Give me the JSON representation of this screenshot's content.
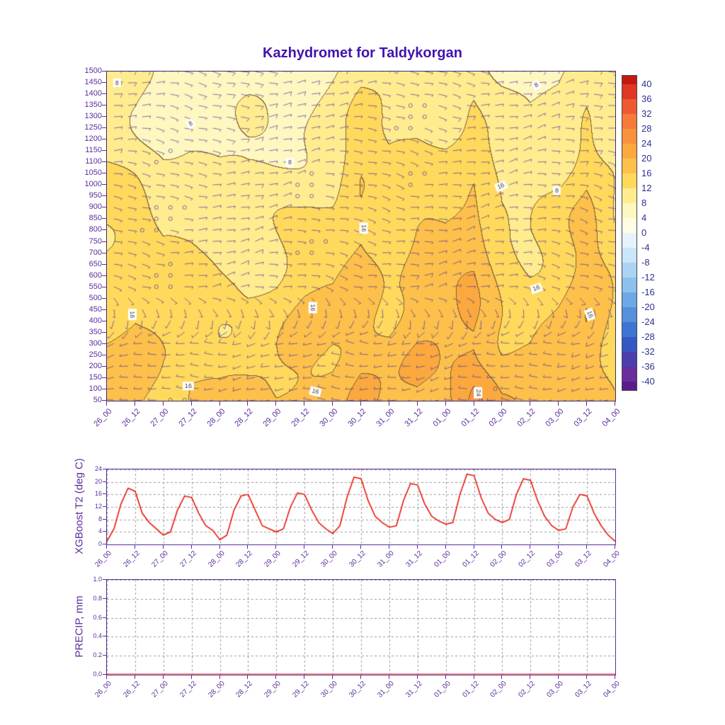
{
  "title": "Kazhydromet for Taldykorgan",
  "colors": {
    "title": "#4312b0",
    "axis": "#5b2d9b",
    "tick_label": "#5b2d9b",
    "temp_line": "#e8180c",
    "colorbar_label": "#2a3190",
    "barb": "#53399a",
    "contour_line": "#80643a",
    "grid_line": "#999999",
    "background": "#ffffff"
  },
  "x_labels": [
    "26_00",
    "26_12",
    "27_00",
    "27_12",
    "28_00",
    "28_12",
    "29_00",
    "29_12",
    "30_00",
    "30_12",
    "31_00",
    "31_12",
    "01_00",
    "01_12",
    "02_00",
    "02_12",
    "03_00",
    "03_12",
    "04_00"
  ],
  "chart_data": [
    {
      "type": "heatmap",
      "title": "Kazhydromet for Taldykorgan",
      "x": [
        "26_00",
        "26_12",
        "27_00",
        "27_12",
        "28_00",
        "28_12",
        "29_00",
        "29_12",
        "30_00",
        "30_12",
        "31_00",
        "31_12",
        "01_00",
        "01_12",
        "02_00",
        "02_12",
        "03_00",
        "03_12",
        "04_00"
      ],
      "y_ticks": [
        50,
        100,
        150,
        200,
        250,
        300,
        350,
        400,
        450,
        500,
        550,
        600,
        650,
        700,
        750,
        800,
        850,
        900,
        950,
        1000,
        1050,
        1100,
        1150,
        1200,
        1250,
        1300,
        1350,
        1400,
        1450,
        1500
      ],
      "y_axis_units": "height_m",
      "grid_levels": [
        1500,
        1300,
        1050,
        800,
        550,
        300,
        50
      ],
      "temperature": [
        [
          8,
          7,
          6,
          6,
          5,
          6,
          6,
          7,
          9,
          11,
          9,
          10,
          10,
          11,
          8,
          6,
          7,
          10,
          9
        ],
        [
          9,
          8,
          7,
          7,
          6,
          7,
          7,
          8,
          10,
          13,
          11,
          12,
          12,
          13,
          9,
          7,
          9,
          13,
          10
        ],
        [
          12,
          11,
          9,
          9,
          8,
          8,
          9,
          10,
          11,
          15,
          12,
          14,
          14,
          16,
          11,
          9,
          11,
          16,
          12
        ],
        [
          13,
          14,
          11,
          11,
          10,
          10,
          11,
          12,
          13,
          17,
          14,
          16,
          16,
          18,
          13,
          12,
          13,
          17,
          13
        ],
        [
          15,
          16,
          13,
          13,
          12,
          12,
          13,
          15,
          15,
          18,
          16,
          18,
          18,
          19,
          15,
          14,
          15,
          18,
          14
        ],
        [
          17,
          17,
          15,
          15,
          14,
          14,
          15,
          17,
          17,
          19,
          17,
          19,
          19,
          21,
          17,
          16,
          17,
          19,
          15
        ],
        [
          18,
          17,
          16,
          17,
          16,
          16,
          16,
          18,
          18,
          20,
          18,
          20,
          20,
          25,
          19,
          18,
          17,
          19,
          16
        ]
      ],
      "wind_dir_deg": [
        [
          70,
          80,
          90,
          100,
          110,
          100,
          90,
          80,
          70,
          80,
          90,
          100,
          110,
          100,
          90,
          80,
          70,
          80,
          90
        ],
        [
          80,
          90,
          100,
          110,
          100,
          90,
          80,
          70,
          80,
          90,
          100,
          110,
          100,
          90,
          80,
          70,
          80,
          90,
          100
        ],
        [
          90,
          100,
          110,
          100,
          90,
          80,
          70,
          80,
          90,
          100,
          110,
          100,
          90,
          80,
          70,
          80,
          90,
          100,
          110
        ],
        [
          100,
          110,
          100,
          90,
          80,
          70,
          80,
          90,
          100,
          110,
          100,
          90,
          80,
          70,
          80,
          90,
          100,
          110,
          100
        ],
        [
          110,
          100,
          90,
          80,
          70,
          80,
          90,
          100,
          110,
          100,
          90,
          80,
          70,
          80,
          90,
          100,
          110,
          100,
          90
        ],
        [
          250,
          260,
          270,
          280,
          270,
          260,
          250,
          260,
          270,
          280,
          270,
          260,
          250,
          260,
          270,
          280,
          270,
          260,
          250
        ],
        [
          260,
          270,
          280,
          270,
          260,
          250,
          260,
          270,
          280,
          270,
          260,
          250,
          260,
          270,
          280,
          270,
          260,
          250,
          260
        ]
      ],
      "wind_speed_kt": [
        [
          8,
          7,
          6,
          7,
          8,
          9,
          8,
          7,
          6,
          7,
          4,
          2,
          8,
          7,
          6,
          7,
          8,
          9,
          8
        ],
        [
          7,
          6,
          5,
          6,
          7,
          8,
          7,
          6,
          5,
          6,
          4,
          2,
          7,
          6,
          5,
          6,
          7,
          8,
          7
        ],
        [
          6,
          5,
          2,
          5,
          6,
          7,
          6,
          2,
          5,
          5,
          6,
          2,
          6,
          5,
          4,
          5,
          6,
          7,
          6
        ],
        [
          5,
          4,
          2,
          4,
          5,
          6,
          5,
          2,
          4,
          4,
          5,
          6,
          5,
          4,
          4,
          4,
          5,
          6,
          5
        ],
        [
          6,
          5,
          2,
          5,
          6,
          7,
          6,
          5,
          4,
          5,
          6,
          7,
          6,
          5,
          4,
          5,
          6,
          7,
          6
        ],
        [
          7,
          6,
          5,
          6,
          7,
          8,
          7,
          6,
          5,
          6,
          7,
          8,
          7,
          6,
          5,
          6,
          7,
          8,
          7
        ],
        [
          5,
          4,
          3,
          4,
          5,
          6,
          5,
          4,
          3,
          4,
          5,
          6,
          5,
          4,
          3,
          4,
          5,
          6,
          5
        ]
      ],
      "contour_interval": 4,
      "contour_labels": [
        {
          "x": 0.02,
          "y": 1450,
          "text": "8",
          "rot": 0
        },
        {
          "x": 0.165,
          "y": 1270,
          "text": "8",
          "rot": -35
        },
        {
          "x": 0.36,
          "y": 1100,
          "text": "8",
          "rot": 0
        },
        {
          "x": 0.845,
          "y": 1440,
          "text": "8",
          "rot": -30
        },
        {
          "x": 0.885,
          "y": 975,
          "text": "8",
          "rot": 0
        },
        {
          "x": 0.05,
          "y": 430,
          "text": "16",
          "rot": 90
        },
        {
          "x": 0.405,
          "y": 460,
          "text": "16",
          "rot": 90
        },
        {
          "x": 0.505,
          "y": 810,
          "text": "16",
          "rot": 90
        },
        {
          "x": 0.775,
          "y": 995,
          "text": "16",
          "rot": -25
        },
        {
          "x": 0.845,
          "y": 545,
          "text": "16",
          "rot": -20
        },
        {
          "x": 0.95,
          "y": 430,
          "text": "16",
          "rot": 70
        },
        {
          "x": 0.16,
          "y": 115,
          "text": "16",
          "rot": 0
        },
        {
          "x": 0.41,
          "y": 90,
          "text": "16",
          "rot": 15
        },
        {
          "x": 0.73,
          "y": 85,
          "text": "24",
          "rot": 90
        }
      ],
      "colorbar": {
        "ticks": [
          40,
          36,
          32,
          28,
          24,
          20,
          16,
          12,
          8,
          4,
          0,
          -4,
          -8,
          -12,
          -16,
          -20,
          -24,
          -28,
          -32,
          -36,
          -40
        ],
        "band_colors_cold_to_hot": [
          "#6a2d9c",
          "#4b3fb0",
          "#3558c4",
          "#3f74d2",
          "#5490dc",
          "#6fa8e6",
          "#8cc0ee",
          "#abd4f4",
          "#c9e6fa",
          "#e4f3fc",
          "#fffce4",
          "#fff7c0",
          "#ffec8f",
          "#ffd95c",
          "#fdc04a",
          "#fba93e",
          "#f9923c",
          "#f67a38",
          "#ee5a30",
          "#e03825"
        ],
        "over_color": "#c21a13",
        "under_color": "#5a1c8c"
      }
    },
    {
      "type": "line",
      "ylabel": "XGBoost T2 (deg C)",
      "color": "#e8180c",
      "x_tick_labels": [
        "26_00",
        "26_12",
        "27_00",
        "27_12",
        "28_00",
        "28_12",
        "29_00",
        "29_12",
        "30_00",
        "30_12",
        "31_00",
        "31_12",
        "01_00",
        "01_12",
        "02_00",
        "02_12",
        "03_00",
        "03_12",
        "04_00"
      ],
      "x_step_hours": 3,
      "y_ticks": [
        0,
        4,
        8,
        12,
        16,
        20,
        24
      ],
      "ylim": [
        0,
        24
      ],
      "values": [
        1,
        5,
        13,
        18,
        17,
        10,
        7,
        5,
        3,
        4,
        11,
        15.5,
        15,
        10,
        6,
        4.5,
        1.5,
        3,
        11,
        15.5,
        16,
        11,
        6,
        5,
        4,
        5,
        12,
        16.5,
        16,
        11,
        7,
        5,
        3.5,
        6,
        15,
        21.5,
        21,
        14,
        9,
        7,
        5.5,
        6,
        14,
        19.5,
        19,
        13,
        9,
        7.5,
        6.5,
        7,
        16,
        22.5,
        22,
        15,
        10,
        8,
        7,
        8,
        16,
        21,
        20.5,
        14,
        9,
        6,
        4.5,
        5,
        12,
        16,
        15.5,
        10,
        6,
        3,
        1
      ]
    },
    {
      "type": "line",
      "ylabel": "PRECIP, mm",
      "color": "#e8180c",
      "x_tick_labels": [
        "26_00",
        "26_12",
        "27_00",
        "27_12",
        "28_00",
        "28_12",
        "29_00",
        "29_12",
        "30_00",
        "30_12",
        "31_00",
        "31_12",
        "01_00",
        "01_12",
        "02_00",
        "02_12",
        "03_00",
        "03_12",
        "04_00"
      ],
      "y_ticks": [
        0.0,
        0.2,
        0.4,
        0.6,
        0.8,
        1.0
      ],
      "ylim": [
        0,
        1
      ],
      "constant_value": 0,
      "n_points": 73
    }
  ]
}
